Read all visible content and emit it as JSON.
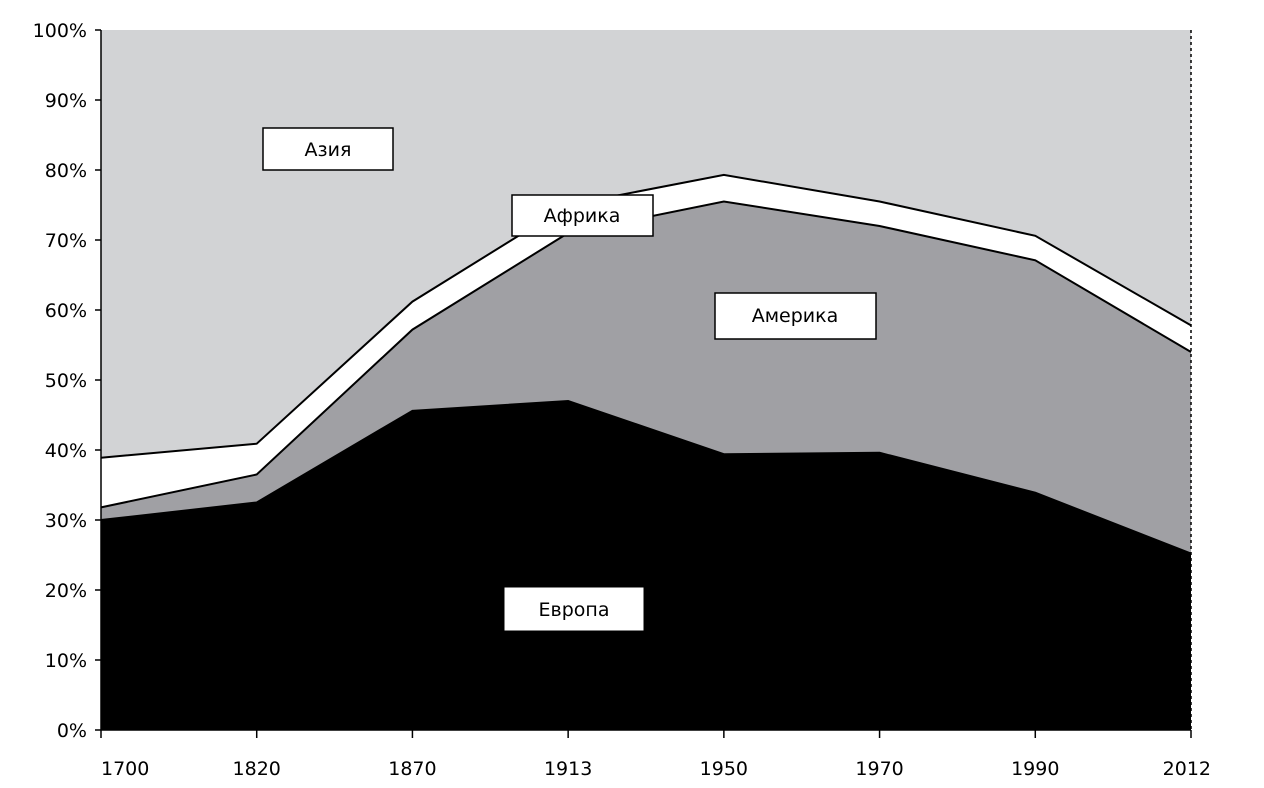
{
  "chart_data": {
    "type": "area",
    "stacked": true,
    "normalized_percent": true,
    "categories": [
      "1700",
      "1820",
      "1870",
      "1913",
      "1950",
      "1970",
      "1990",
      "2012"
    ],
    "ylim": [
      0,
      100
    ],
    "yticks": [
      "0%",
      "10%",
      "20%",
      "30%",
      "40%",
      "50%",
      "60%",
      "70%",
      "80%",
      "90%",
      "100%"
    ],
    "grid": false,
    "legend": "none (labels placed inside areas)",
    "series": [
      {
        "name": "Европа",
        "values": [
          30.0,
          32.5,
          45.6,
          47.0,
          39.4,
          39.6,
          33.9,
          25.2
        ],
        "color": "#000000"
      },
      {
        "name": "Америка",
        "values": [
          1.8,
          4.0,
          11.6,
          24.0,
          36.1,
          32.4,
          33.2,
          28.8
        ],
        "color": "#a0a0a4"
      },
      {
        "name": "Африка",
        "values": [
          7.1,
          4.4,
          4.0,
          4.0,
          3.8,
          3.5,
          3.5,
          3.8
        ],
        "color": "#ffffff"
      },
      {
        "name": "Азия",
        "values": [
          61.1,
          59.1,
          38.8,
          25.0,
          20.7,
          24.5,
          29.4,
          42.2
        ],
        "color": "#d2d3d5"
      }
    ],
    "labels": {
      "europe": "Европа",
      "america": "Америка",
      "africa": "Африка",
      "asia": "Азия"
    }
  }
}
